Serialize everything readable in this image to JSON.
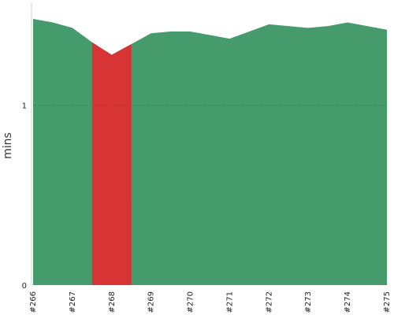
{
  "chart_data": {
    "type": "area",
    "title": "",
    "xlabel": "",
    "ylabel": "mins",
    "ylim": [
      0,
      1.55
    ],
    "yticks": [
      0,
      1
    ],
    "ytick_labels": [
      "0",
      "1"
    ],
    "x": [
      266,
      266.5,
      267,
      267.5,
      268,
      268.5,
      269,
      269.5,
      270,
      270.5,
      271,
      271.5,
      272,
      272.5,
      273,
      273.5,
      274,
      274.5,
      275
    ],
    "x_tick_labels": [
      "#266",
      "#267",
      "#268",
      "#269",
      "#270",
      "#271",
      "#272",
      "#273",
      "#274",
      "#275"
    ],
    "series": [
      {
        "values": [
          1.48,
          1.46,
          1.43,
          1.35,
          1.28,
          1.34,
          1.4,
          1.41,
          1.41,
          1.39,
          1.37,
          1.41,
          1.45,
          1.44,
          1.43,
          1.44,
          1.46,
          1.44,
          1.42
        ]
      }
    ],
    "highlight": {
      "x_start": 267.5,
      "x_end": 268.5,
      "color": "#d73535"
    },
    "fill_color": "#459b6c",
    "grid": {
      "y_dashed": true,
      "x": false
    }
  }
}
